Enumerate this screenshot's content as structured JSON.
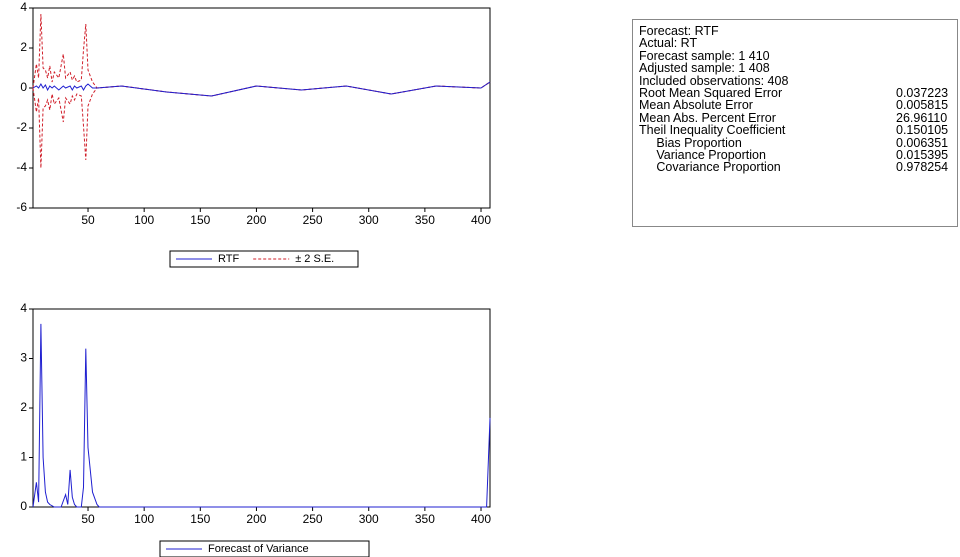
{
  "chart_data": [
    {
      "type": "line",
      "xlim": [
        1,
        408
      ],
      "ylim": [
        -6,
        4
      ],
      "xticks": [
        50,
        100,
        150,
        200,
        250,
        300,
        350,
        400
      ],
      "yticks": [
        -6,
        -4,
        -2,
        0,
        2,
        4
      ],
      "x": [
        1,
        4,
        6,
        8,
        10,
        12,
        14,
        16,
        18,
        20,
        24,
        28,
        30,
        34,
        36,
        38,
        40,
        44,
        46,
        48,
        50,
        54,
        58,
        80,
        120,
        160,
        200,
        240,
        280,
        320,
        360,
        400,
        408
      ],
      "series": [
        {
          "name": "RTF",
          "color": "#1f1fd0",
          "dashed": false,
          "values": [
            0,
            0.1,
            0,
            0.2,
            0,
            0.15,
            -0.1,
            0.1,
            0,
            0.1,
            -0.1,
            0.1,
            0,
            0.1,
            -0.1,
            0.1,
            0,
            0.1,
            -0.1,
            0.1,
            0.2,
            0,
            0,
            0.1,
            -0.2,
            -0.4,
            0.1,
            -0.1,
            0.1,
            -0.3,
            0.1,
            0,
            0.3
          ]
        },
        {
          "name": "± 2 S.E.",
          "color": "#d01f2a",
          "dashed": true,
          "values": [
            0,
            1.2,
            0.5,
            3.7,
            1.0,
            0.9,
            0.5,
            1.1,
            0.3,
            0.8,
            0.5,
            1.7,
            0.5,
            0.8,
            0.4,
            0.6,
            0.3,
            0.4,
            1.9,
            3.2,
            0.9,
            0.3,
            0,
            0.1,
            -0.2,
            -0.4,
            0.1,
            -0.1,
            0.1,
            -0.3,
            0.1,
            0,
            0.3
          ]
        },
        {
          "color": "#d01f2a",
          "dashed": true,
          "values": [
            0,
            -1.2,
            -0.5,
            -4.0,
            -1.0,
            -0.9,
            -0.6,
            -1.1,
            -0.3,
            -0.8,
            -0.5,
            -1.7,
            -0.5,
            -0.8,
            -0.4,
            -0.6,
            -0.3,
            -0.4,
            -1.9,
            -3.6,
            -0.9,
            -0.3,
            0,
            0.1,
            -0.2,
            -0.4,
            0.1,
            -0.1,
            0.1,
            -0.3,
            0.1,
            0,
            0.3
          ]
        }
      ]
    },
    {
      "type": "line",
      "xlim": [
        1,
        408
      ],
      "ylim": [
        0,
        4
      ],
      "xticks": [
        50,
        100,
        150,
        200,
        250,
        300,
        350,
        400
      ],
      "yticks": [
        0,
        1,
        2,
        3,
        4
      ],
      "x": [
        1,
        4,
        6,
        8,
        10,
        12,
        14,
        16,
        20,
        26,
        30,
        32,
        34,
        36,
        38,
        40,
        44,
        46,
        48,
        50,
        54,
        58,
        60,
        100,
        200,
        300,
        400,
        405,
        408
      ],
      "series": [
        {
          "name": "Forecast of Variance",
          "color": "#1f1fd0",
          "dashed": false,
          "values": [
            0,
            0.5,
            0.1,
            3.7,
            1.0,
            0.3,
            0.1,
            0.05,
            0,
            0,
            0.25,
            0.05,
            0.75,
            0.2,
            0.05,
            0,
            0,
            0.4,
            3.2,
            1.2,
            0.3,
            0.05,
            0,
            0,
            0,
            0,
            0,
            0,
            1.8
          ]
        }
      ]
    }
  ],
  "stats": {
    "lines": [
      "Forecast: RTF",
      "Actual: RT",
      "Forecast sample: 1 410",
      "Adjusted sample: 1 408",
      "Included observations: 408"
    ],
    "rows": [
      [
        "Root Mean Squared Error",
        "0.037223"
      ],
      [
        "Mean Absolute Error",
        "0.005815"
      ],
      [
        "Mean Abs. Percent Error",
        "26.96110"
      ],
      [
        "Theil Inequality Coefficient",
        "0.150105"
      ],
      [
        "     Bias Proportion",
        "0.006351"
      ],
      [
        "     Variance Proportion",
        "0.015395"
      ],
      [
        "     Covariance Proportion",
        "0.978254"
      ]
    ]
  }
}
